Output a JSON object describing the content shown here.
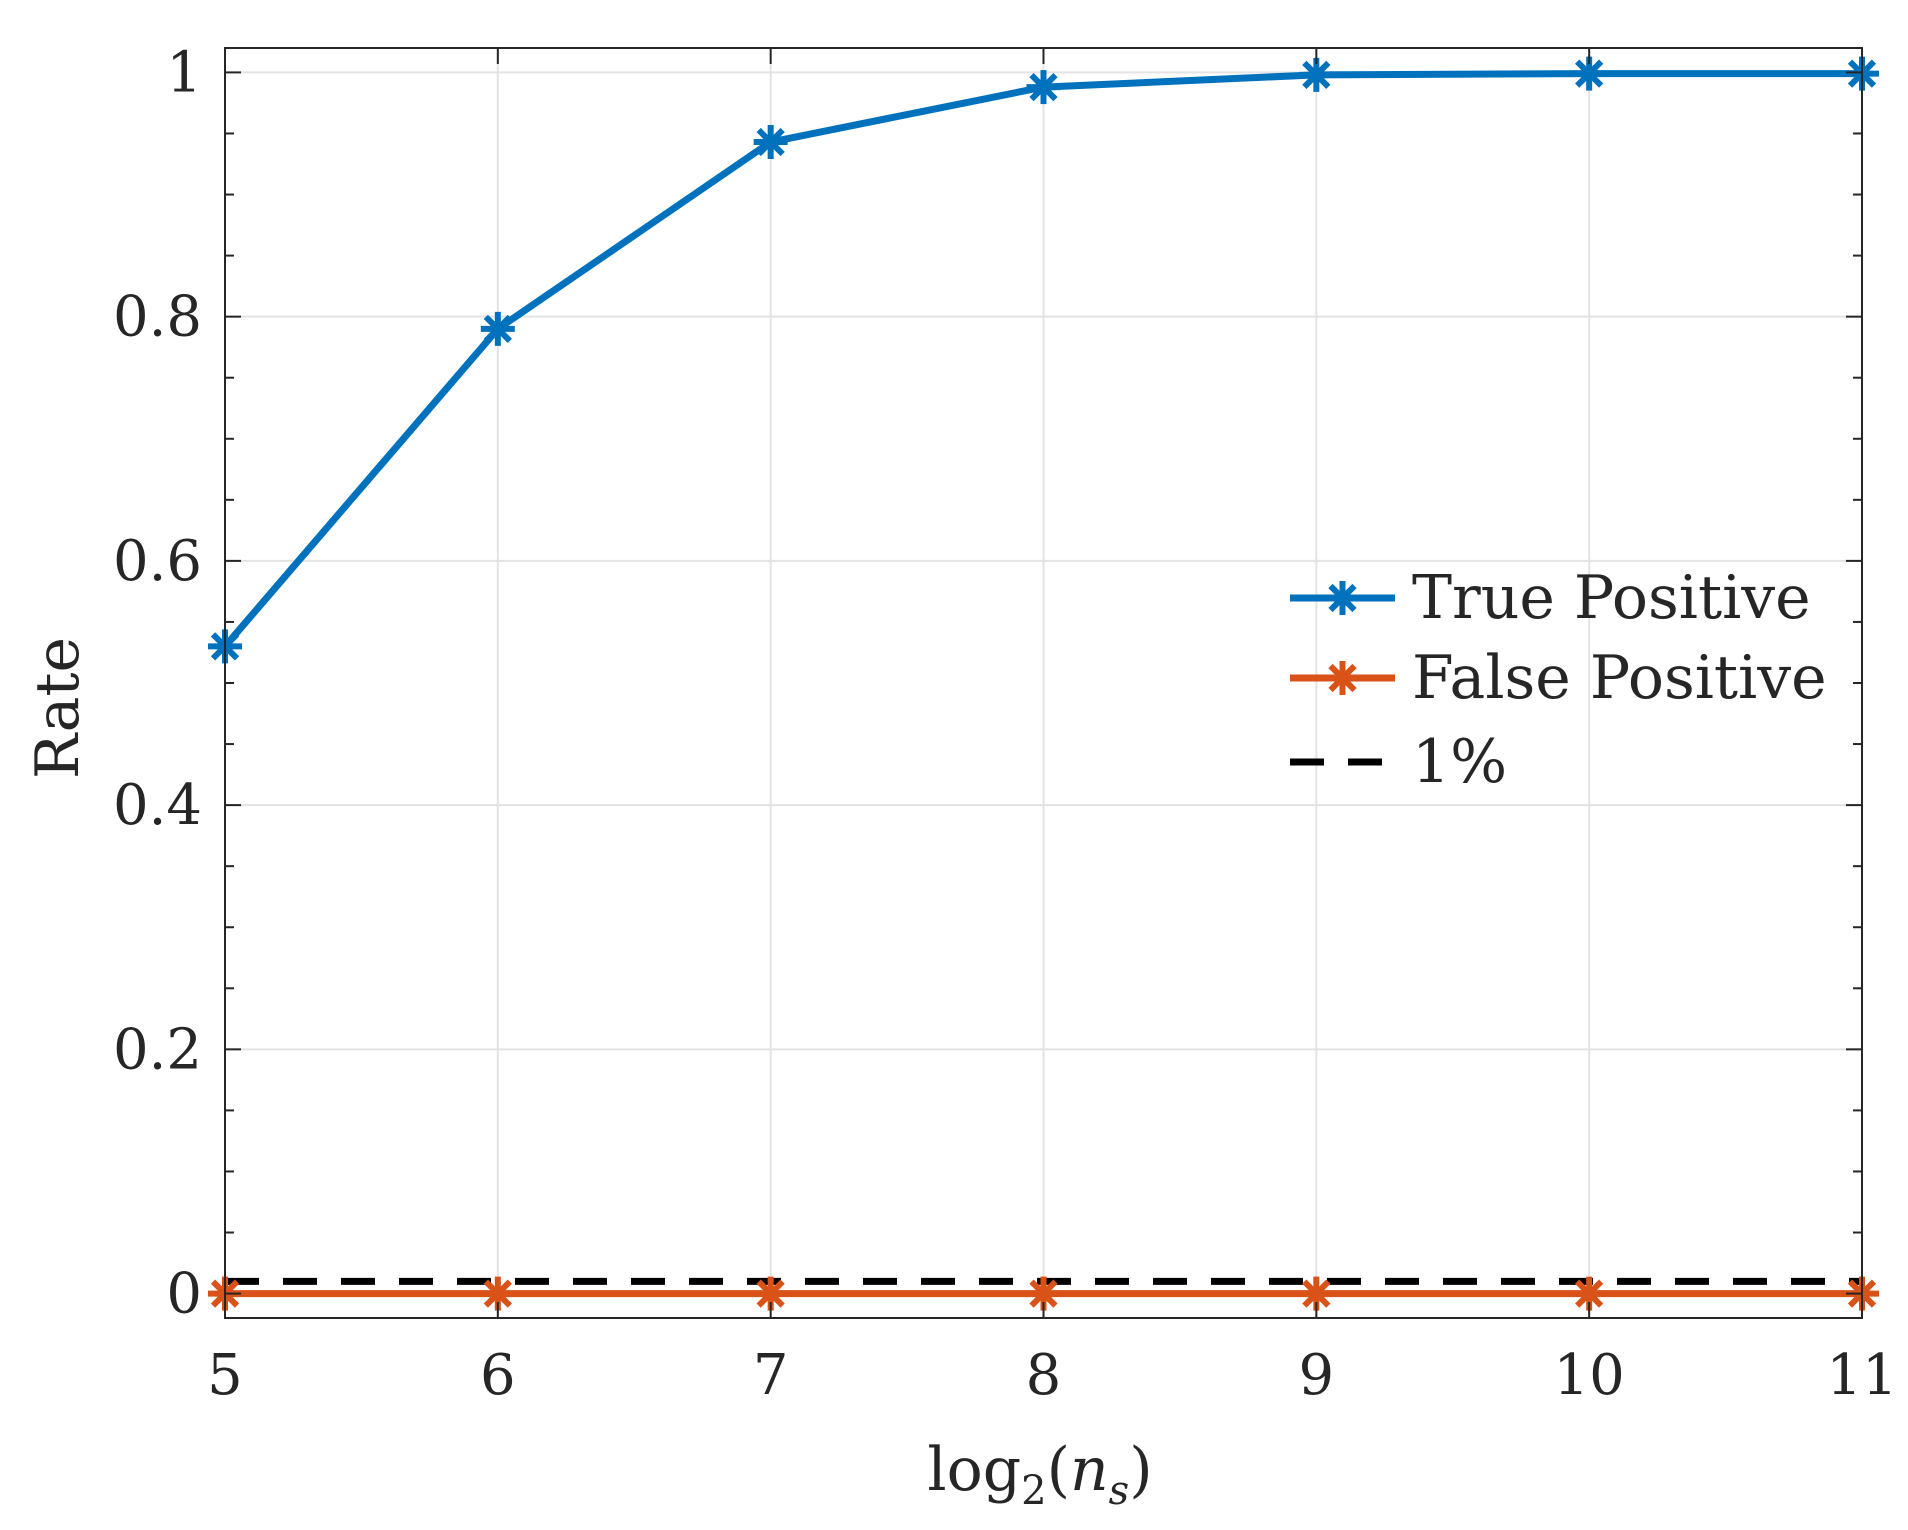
{
  "chart_data": {
    "type": "line",
    "title": "",
    "xlabel": "log2(ns)",
    "xlabel_parts": {
      "base": "log",
      "sub1": "2",
      "open": "(",
      "var": "n",
      "sub2": "s",
      "close": ")"
    },
    "ylabel": "Rate",
    "x": [
      5,
      6,
      7,
      8,
      9,
      10,
      11
    ],
    "xlim": [
      5,
      11
    ],
    "ylim": [
      -0.02,
      1.02
    ],
    "xticks": [
      5,
      6,
      7,
      8,
      9,
      10,
      11
    ],
    "xtick_labels": [
      "5",
      "6",
      "7",
      "8",
      "9",
      "10",
      "11"
    ],
    "yticks": [
      0,
      0.2,
      0.4,
      0.6,
      0.8,
      1
    ],
    "ytick_labels": [
      "0",
      "0.2",
      "0.4",
      "0.6",
      "0.8",
      "1"
    ],
    "grid": true,
    "legend_position": "right",
    "series": [
      {
        "name": "True Positive",
        "color": "#0072BD",
        "style": "solid",
        "marker": "asterisk",
        "values": [
          0.53,
          0.79,
          0.943,
          0.988,
          0.998,
          0.999,
          0.999
        ]
      },
      {
        "name": "False Positive",
        "color": "#D95319",
        "style": "solid",
        "marker": "asterisk",
        "values": [
          0.0,
          0.0,
          0.0,
          0.0,
          0.0,
          0.0,
          0.0
        ]
      },
      {
        "name": "1%",
        "color": "#000000",
        "style": "dashed",
        "marker": "none",
        "values": [
          0.01,
          0.01,
          0.01,
          0.01,
          0.01,
          0.01,
          0.01
        ]
      }
    ]
  }
}
